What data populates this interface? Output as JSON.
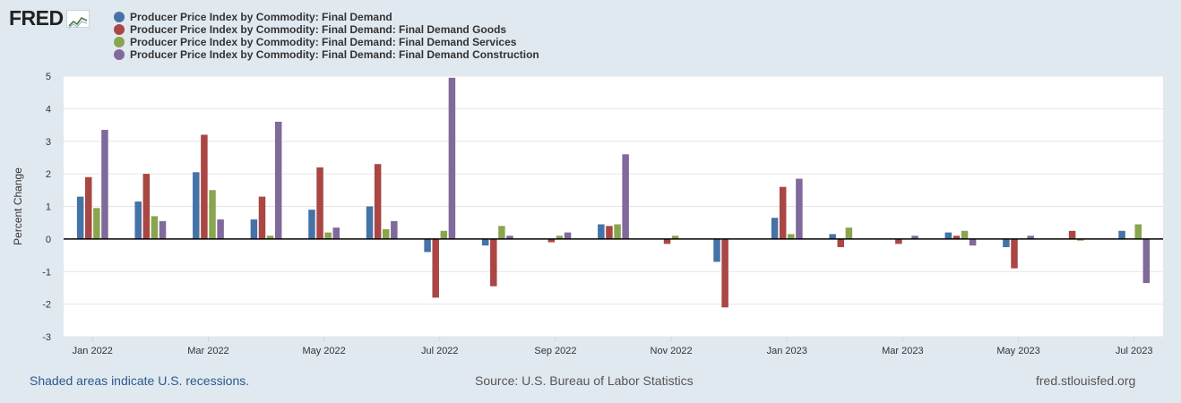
{
  "logo": {
    "text": "FRED",
    "icon": "fred-chart-icon"
  },
  "colors": {
    "background": "#e1e9f0",
    "plot_background": "#ffffff",
    "grid": "#e6e6e6",
    "zero_line": "#000000"
  },
  "chart_data": {
    "type": "bar",
    "title": "",
    "ylabel": "Percent Change",
    "xlabel": "",
    "ylim": [
      -3,
      5
    ],
    "yticks": [
      5,
      4,
      3,
      2,
      1,
      0,
      -1,
      -2,
      -3
    ],
    "grid": true,
    "legend_position": "top-left",
    "categories": [
      "Jan 2022",
      "Feb 2022",
      "Mar 2022",
      "Apr 2022",
      "May 2022",
      "Jun 2022",
      "Jul 2022",
      "Aug 2022",
      "Sep 2022",
      "Oct 2022",
      "Nov 2022",
      "Dec 2022",
      "Jan 2023",
      "Feb 2023",
      "Mar 2023",
      "Apr 2023",
      "May 2023",
      "Jun 2023",
      "Jul 2023"
    ],
    "x_tick_labels": [
      "Jan 2022",
      "Mar 2022",
      "May 2022",
      "Jul 2022",
      "Sep 2022",
      "Nov 2022",
      "Jan 2023",
      "Mar 2023",
      "May 2023",
      "Jul 2023"
    ],
    "x_tick_category_index": [
      0,
      2,
      4,
      6,
      8,
      10,
      12,
      14,
      16,
      18
    ],
    "series": [
      {
        "name": "Producer Price Index by Commodity: Final Demand",
        "color": "#4572a7",
        "values": [
          1.3,
          1.15,
          2.05,
          0.6,
          0.9,
          1.0,
          -0.4,
          -0.2,
          0.0,
          0.45,
          0.0,
          -0.7,
          0.65,
          0.15,
          0.0,
          0.2,
          -0.25,
          0.0,
          0.25
        ]
      },
      {
        "name": "Producer Price Index by Commodity: Final Demand: Final Demand Goods",
        "color": "#aa4643",
        "values": [
          1.9,
          2.0,
          3.2,
          1.3,
          2.2,
          2.3,
          -1.8,
          -1.45,
          -0.1,
          0.4,
          -0.15,
          -2.1,
          1.6,
          -0.25,
          -0.15,
          0.1,
          -0.9,
          0.25,
          0.0
        ]
      },
      {
        "name": "Producer Price Index by Commodity: Final Demand: Final Demand Services",
        "color": "#89a54e",
        "values": [
          0.95,
          0.7,
          1.5,
          0.1,
          0.2,
          0.3,
          0.25,
          0.4,
          0.1,
          0.45,
          0.1,
          0.0,
          0.15,
          0.35,
          0.0,
          0.25,
          0.0,
          -0.05,
          0.45
        ]
      },
      {
        "name": "Producer Price Index by Commodity: Final Demand: Final Demand Construction",
        "color": "#80699b",
        "values": [
          3.35,
          0.55,
          0.6,
          3.6,
          0.35,
          0.55,
          4.95,
          0.1,
          0.2,
          2.6,
          0.0,
          0.0,
          1.85,
          0.0,
          0.1,
          -0.2,
          0.1,
          0.0,
          -1.35
        ]
      }
    ]
  },
  "footer": {
    "recession_note": "Shaded areas indicate U.S. recessions.",
    "source": "Source: U.S. Bureau of Labor Statistics",
    "site": "fred.stlouisfed.org"
  }
}
